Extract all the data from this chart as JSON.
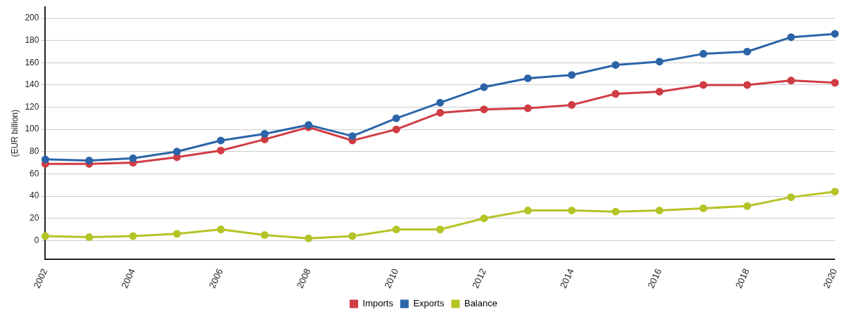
{
  "chart_data": {
    "type": "line",
    "ylabel": "(EUR billion)",
    "categories": [
      "2002",
      null,
      "2004",
      null,
      "2006",
      null,
      "2008",
      null,
      "2010",
      null,
      "2012",
      null,
      "2014",
      null,
      "2016",
      null,
      "2018",
      null,
      "2020"
    ],
    "series": [
      {
        "name": "Imports",
        "color": "#d03c44",
        "values": [
          69,
          69,
          70,
          75,
          81,
          91,
          102,
          90,
          100,
          115,
          118,
          119,
          122,
          132,
          134,
          140,
          140,
          144,
          142
        ]
      },
      {
        "name": "Exports",
        "color": "#2b64a8",
        "values": [
          73,
          72,
          74,
          80,
          90,
          96,
          104,
          94,
          110,
          124,
          138,
          146,
          149,
          158,
          161,
          168,
          170,
          183,
          186
        ]
      },
      {
        "name": "Balance",
        "color": "#b5c427",
        "values": [
          4,
          3,
          4,
          6,
          10,
          5,
          2,
          4,
          10,
          10,
          20,
          27,
          27,
          26,
          27,
          29,
          31,
          39,
          44
        ]
      }
    ],
    "ylim": [
      -17,
      210
    ],
    "yticks": [
      0,
      20,
      40,
      60,
      80,
      100,
      120,
      140,
      160,
      180,
      200
    ],
    "grid": "y",
    "legend": "bottom",
    "marker": "circle",
    "line_style": "solid"
  }
}
